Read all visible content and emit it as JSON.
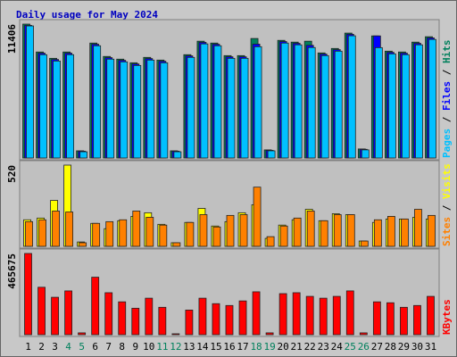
{
  "chart_data": {
    "type": "bar",
    "title": "Daily usage for May 2024",
    "categories": [
      1,
      2,
      3,
      4,
      5,
      6,
      7,
      8,
      9,
      10,
      11,
      12,
      13,
      14,
      15,
      16,
      17,
      18,
      19,
      20,
      21,
      22,
      23,
      24,
      25,
      26,
      27,
      28,
      29,
      30,
      31
    ],
    "weekend": [
      4,
      5,
      11,
      12,
      18,
      19,
      25,
      26
    ],
    "weekend_color": "#00805c",
    "legend_separator": " / ",
    "panels": [
      {
        "ylim": [
          0,
          11406
        ],
        "yticks": [
          11406
        ],
        "series": [
          {
            "name": "Hits",
            "color": "#00805c",
            "values": [
              11406,
              9030,
              8490,
              9030,
              610,
              9790,
              8650,
              8420,
              8110,
              8570,
              8340,
              610,
              8800,
              9950,
              9790,
              8720,
              8720,
              10180,
              690,
              10020,
              9870,
              9950,
              8950,
              9330,
              10640,
              770,
              10400,
              9100,
              9030,
              9870,
              10330
            ]
          },
          {
            "name": "Files",
            "color": "#0000ff",
            "values": [
              11300,
              8930,
              8390,
              8930,
              580,
              9690,
              8550,
              8320,
              8010,
              8470,
              8240,
              580,
              8700,
              9850,
              9690,
              8620,
              8620,
              9700,
              650,
              9920,
              9770,
              9600,
              8850,
              9230,
              10540,
              740,
              10400,
              9000,
              8930,
              9770,
              10230
            ]
          },
          {
            "name": "Pages",
            "color": "#00c0ff",
            "values": [
              11250,
              8800,
              8260,
              8800,
              530,
              9560,
              8420,
              8190,
              7880,
              8340,
              8110,
              530,
              8570,
              9720,
              9560,
              8490,
              8490,
              9480,
              610,
              9790,
              9640,
              9410,
              8720,
              9100,
              10410,
              690,
              9400,
              8870,
              8800,
              9640,
              10100
            ]
          }
        ]
      },
      {
        "ylim": [
          0,
          520
        ],
        "yticks": [
          520
        ],
        "series": [
          {
            "name": "Visits",
            "color": "#ffff00",
            "values": [
              170,
              181,
              294,
              520,
              28,
              147,
              113,
              164,
              192,
              215,
              141,
              23,
              153,
              243,
              130,
              158,
              215,
              266,
              51,
              136,
              170,
              237,
              164,
              209,
              203,
              34,
              153,
              175,
              175,
              186,
              175
            ]
          },
          {
            "name": "Sites",
            "color": "#ff8000",
            "values": [
              158,
              170,
              226,
              220,
              23,
              147,
              158,
              170,
              226,
              186,
              136,
              23,
              153,
              203,
              124,
              198,
              203,
              379,
              62,
              130,
              181,
              226,
              164,
              203,
              203,
              34,
              170,
              192,
              175,
              237,
              198
            ]
          }
        ]
      },
      {
        "ylim": [
          0,
          465675
        ],
        "yticks": [
          465675
        ],
        "series": [
          {
            "name": "KBytes",
            "color": "#ff0000",
            "values": [
              465675,
              272000,
              214500,
              251000,
              10500,
              329600,
              240700,
              188400,
              151700,
              209300,
              157000,
              5200,
              141300,
              209300,
              177900,
              167400,
              193600,
              245900,
              10500,
              235400,
              240700,
              219700,
              209300,
              219700,
              251100,
              10500,
              188400,
              183100,
              157000,
              167400,
              219700
            ]
          }
        ]
      }
    ]
  }
}
